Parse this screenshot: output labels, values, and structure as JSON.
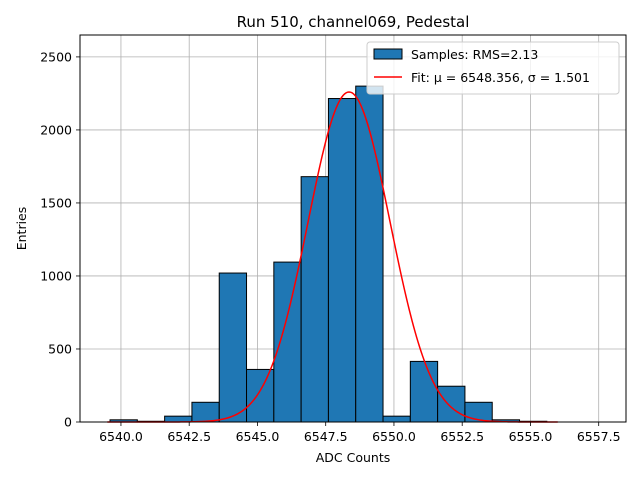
{
  "chart_data": {
    "type": "bar",
    "title": "Run 510, channel069, Pedestal",
    "xlabel": "ADC Counts",
    "ylabel": "Entries",
    "xlim": [
      6538.5,
      6558.5
    ],
    "ylim": [
      0,
      2650
    ],
    "grid": true,
    "xticks": [
      6540.0,
      6542.5,
      6545.0,
      6547.5,
      6550.0,
      6552.5,
      6555.0,
      6557.5
    ],
    "xtick_labels": [
      "6540.0",
      "6542.5",
      "6545.0",
      "6547.5",
      "6550.0",
      "6552.5",
      "6555.0",
      "6557.5"
    ],
    "yticks": [
      0,
      500,
      1000,
      1500,
      2000,
      2500
    ],
    "ytick_labels": [
      "0",
      "500",
      "1000",
      "1500",
      "2000",
      "2500"
    ],
    "bins": {
      "edges": [
        6539.6,
        6540.6,
        6541.6,
        6542.6,
        6543.6,
        6544.6,
        6545.6,
        6546.6,
        6547.6,
        6548.6,
        6549.6,
        6550.6,
        6551.6,
        6552.6,
        6553.6,
        6554.6,
        6555.6
      ],
      "counts": [
        15,
        5,
        40,
        135,
        1020,
        360,
        1095,
        1680,
        2215,
        2300,
        40,
        415,
        245,
        135,
        15,
        5
      ]
    },
    "fit": {
      "mu": 6548.356,
      "sigma": 1.501,
      "amplitude": 2260,
      "x_range": [
        6539.5,
        6556.0
      ]
    },
    "legend": {
      "position": "top-right",
      "entries": [
        {
          "label": "Samples: RMS=2.13",
          "kind": "patch",
          "color": "#1f77b4"
        },
        {
          "label": "Fit: μ = 6548.356, σ = 1.501",
          "kind": "line",
          "color": "#ff0000"
        }
      ]
    },
    "colors": {
      "bar_fill": "#1f77b4",
      "bar_edge": "#000000",
      "fit_line": "#ff0000",
      "grid": "#b0b0b0"
    }
  }
}
